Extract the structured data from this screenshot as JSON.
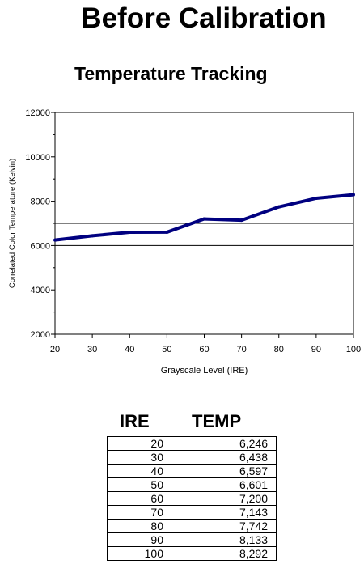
{
  "page": {
    "title": "Before Calibration",
    "subtitle": "Temperature Tracking"
  },
  "chart_data": {
    "type": "line",
    "xlabel": "Grayscale Level (IRE)",
    "ylabel": "Correlated Color Temperature (Kelvin)",
    "xlim": [
      20,
      100
    ],
    "ylim": [
      2000,
      12000
    ],
    "x_ticks": [
      "20",
      "30",
      "40",
      "50",
      "60",
      "70",
      "80",
      "90",
      "100"
    ],
    "y_ticks": [
      "2000",
      "4000",
      "6000",
      "8000",
      "10000",
      "12000"
    ],
    "grid": false,
    "series": [
      {
        "x": [
          20,
          30,
          40,
          50,
          60,
          70,
          80,
          90,
          100
        ],
        "values": [
          6246,
          6438,
          6597,
          6601,
          7200,
          7143,
          7742,
          8133,
          8292
        ],
        "color": "#000080"
      }
    ],
    "reference_lines": [
      {
        "y": 6000,
        "color": "#000000"
      },
      {
        "y": 7000,
        "color": "#000000"
      }
    ]
  },
  "table": {
    "headers": [
      "IRE",
      "TEMP"
    ],
    "rows": [
      [
        "20",
        "6,246"
      ],
      [
        "30",
        "6,438"
      ],
      [
        "40",
        "6,597"
      ],
      [
        "50",
        "6,601"
      ],
      [
        "60",
        "7,200"
      ],
      [
        "70",
        "7,143"
      ],
      [
        "80",
        "7,742"
      ],
      [
        "90",
        "8,133"
      ],
      [
        "100",
        "8,292"
      ]
    ]
  }
}
